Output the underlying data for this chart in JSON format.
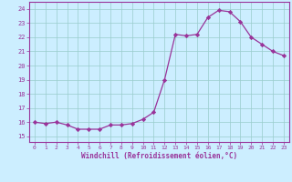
{
  "x": [
    0,
    1,
    2,
    3,
    4,
    5,
    6,
    7,
    8,
    9,
    10,
    11,
    12,
    13,
    14,
    15,
    16,
    17,
    18,
    19,
    20,
    21,
    22,
    23
  ],
  "y": [
    16.0,
    15.9,
    16.0,
    15.8,
    15.5,
    15.5,
    15.5,
    15.8,
    15.8,
    15.9,
    16.2,
    16.7,
    19.0,
    22.2,
    22.1,
    22.2,
    23.4,
    23.9,
    23.8,
    23.1,
    22.0,
    21.5,
    21.0,
    20.7
  ],
  "line_color": "#993399",
  "marker": "D",
  "marker_size": 2.2,
  "bg_color": "#cceeff",
  "grid_color": "#99cccc",
  "xlabel": "Windchill (Refroidissement éolien,°C)",
  "ylim": [
    14.6,
    24.5
  ],
  "xlim": [
    -0.5,
    23.5
  ],
  "yticks": [
    15,
    16,
    17,
    18,
    19,
    20,
    21,
    22,
    23,
    24
  ],
  "xticks": [
    0,
    1,
    2,
    3,
    4,
    5,
    6,
    7,
    8,
    9,
    10,
    11,
    12,
    13,
    14,
    15,
    16,
    17,
    18,
    19,
    20,
    21,
    22,
    23
  ],
  "tick_color": "#993399",
  "label_color": "#993399",
  "spine_color": "#993399"
}
